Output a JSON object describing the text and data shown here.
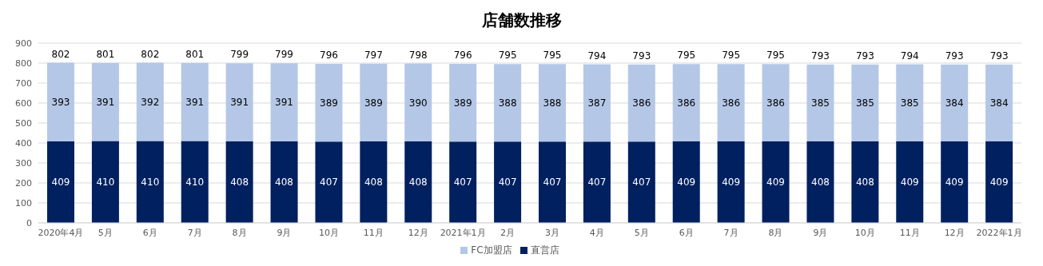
{
  "chart_data": {
    "type": "bar",
    "title": "店舗数推移",
    "stacked": true,
    "categories": [
      "2020年4月",
      "5月",
      "6月",
      "7月",
      "8月",
      "9月",
      "10月",
      "11月",
      "12月",
      "2021年1月",
      "2月",
      "3月",
      "4月",
      "5月",
      "6月",
      "7月",
      "8月",
      "9月",
      "10月",
      "11月",
      "12月",
      "2022年1月"
    ],
    "series": [
      {
        "name": "直営店",
        "color": "#002060",
        "values": [
          409,
          410,
          410,
          410,
          408,
          408,
          407,
          408,
          408,
          407,
          407,
          407,
          407,
          407,
          409,
          409,
          409,
          408,
          408,
          409,
          409,
          409
        ]
      },
      {
        "name": "FC加盟店",
        "color": "#b4c7e7",
        "values": [
          393,
          391,
          392,
          391,
          391,
          391,
          389,
          389,
          390,
          389,
          388,
          388,
          387,
          386,
          386,
          386,
          386,
          385,
          385,
          385,
          384,
          384
        ]
      }
    ],
    "totals": [
      "802",
      "801",
      "802",
      "801",
      "799",
      "799",
      "796",
      "797",
      "798",
      "796",
      "795",
      "795",
      "794",
      "793",
      "795",
      "795",
      "795",
      "793",
      "793",
      "794",
      "793",
      "793"
    ],
    "ylim": [
      0,
      900
    ],
    "yticks": [
      0,
      100,
      200,
      300,
      400,
      500,
      600,
      700,
      800,
      900
    ],
    "grid": "y",
    "legend": "bottom",
    "data_labels": true
  }
}
